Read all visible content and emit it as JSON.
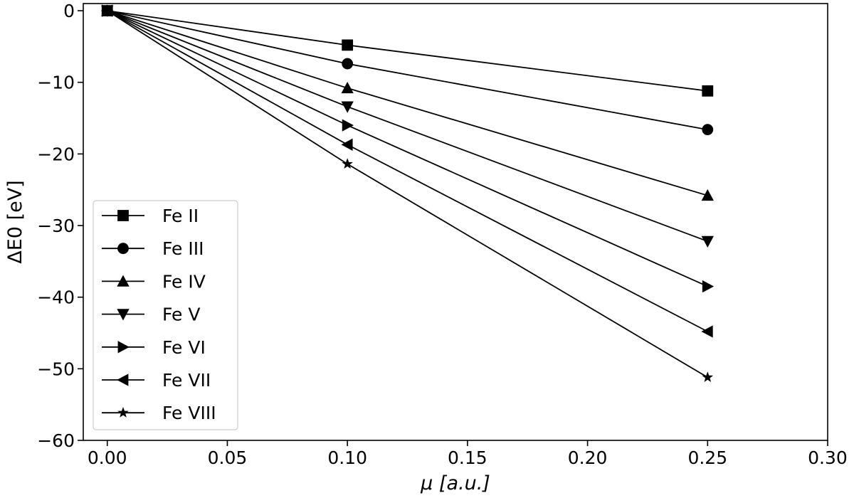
{
  "chart_data": {
    "type": "line",
    "title": "",
    "xlabel": "μ [a.u.]",
    "ylabel": "ΔE0 [eV]",
    "xlim": [
      -0.01,
      0.3
    ],
    "ylim": [
      -60,
      1
    ],
    "x_ticks": [
      "0.00",
      "0.05",
      "0.10",
      "0.15",
      "0.20",
      "0.25",
      "0.30"
    ],
    "y_ticks": [
      "0",
      "−10",
      "−20",
      "−30",
      "−40",
      "−50",
      "−60"
    ],
    "grid": false,
    "legend_position": "lower-left",
    "line_color": "#000000",
    "series": [
      {
        "name": "Fe II",
        "marker": "square",
        "x": [
          0.0,
          0.1,
          0.25
        ],
        "y": [
          0.0,
          -4.8,
          -11.2
        ]
      },
      {
        "name": "Fe III",
        "marker": "circle",
        "x": [
          0.0,
          0.1,
          0.25
        ],
        "y": [
          0.0,
          -7.4,
          -16.6
        ]
      },
      {
        "name": "Fe IV",
        "marker": "triangle-up",
        "x": [
          0.0,
          0.1,
          0.25
        ],
        "y": [
          0.0,
          -10.8,
          -25.8
        ]
      },
      {
        "name": "Fe V",
        "marker": "triangle-down",
        "x": [
          0.0,
          0.1,
          0.25
        ],
        "y": [
          0.0,
          -13.4,
          -32.2
        ]
      },
      {
        "name": "Fe VI",
        "marker": "triangle-right",
        "x": [
          0.0,
          0.1,
          0.25
        ],
        "y": [
          0.0,
          -16.0,
          -38.5
        ]
      },
      {
        "name": "Fe VII",
        "marker": "triangle-left",
        "x": [
          0.0,
          0.1,
          0.25
        ],
        "y": [
          0.0,
          -18.7,
          -44.8
        ]
      },
      {
        "name": "Fe VIII",
        "marker": "star",
        "x": [
          0.0,
          0.1,
          0.25
        ],
        "y": [
          0.0,
          -21.4,
          -51.2
        ]
      }
    ]
  }
}
